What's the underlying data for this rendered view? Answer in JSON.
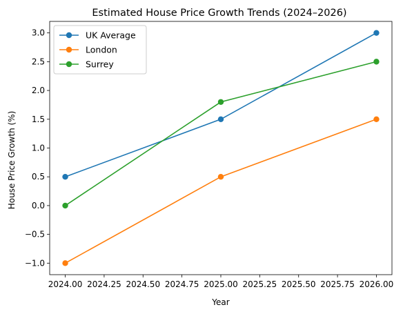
{
  "chart_data": {
    "type": "line",
    "title": "Estimated House Price Growth Trends (2024–2026)",
    "xlabel": "Year",
    "ylabel": "House Price Growth (%)",
    "x": [
      2024,
      2025,
      2026
    ],
    "xlim": [
      2023.9,
      2026.1
    ],
    "ylim": [
      -1.2,
      3.2
    ],
    "xticks": [
      2024.0,
      2024.25,
      2024.5,
      2024.75,
      2025.0,
      2025.25,
      2025.5,
      2025.75,
      2026.0
    ],
    "xtick_labels": [
      "2024.00",
      "2024.25",
      "2024.50",
      "2024.75",
      "2025.00",
      "2025.25",
      "2025.50",
      "2025.75",
      "2026.00"
    ],
    "yticks": [
      -1.0,
      -0.5,
      0.0,
      0.5,
      1.0,
      1.5,
      2.0,
      2.5,
      3.0
    ],
    "ytick_labels": [
      "−1.0",
      "−0.5",
      "0.0",
      "0.5",
      "1.0",
      "1.5",
      "2.0",
      "2.5",
      "3.0"
    ],
    "grid": false,
    "legend_position": "top-left",
    "series": [
      {
        "name": "UK Average",
        "values": [
          0.5,
          1.5,
          3.0
        ],
        "color": "#1f77b4",
        "marker": "circle"
      },
      {
        "name": "London",
        "values": [
          -1.0,
          0.5,
          1.5
        ],
        "color": "#ff7f0e",
        "marker": "circle"
      },
      {
        "name": "Surrey",
        "values": [
          0.0,
          1.8,
          2.5
        ],
        "color": "#2ca02c",
        "marker": "circle"
      }
    ]
  }
}
